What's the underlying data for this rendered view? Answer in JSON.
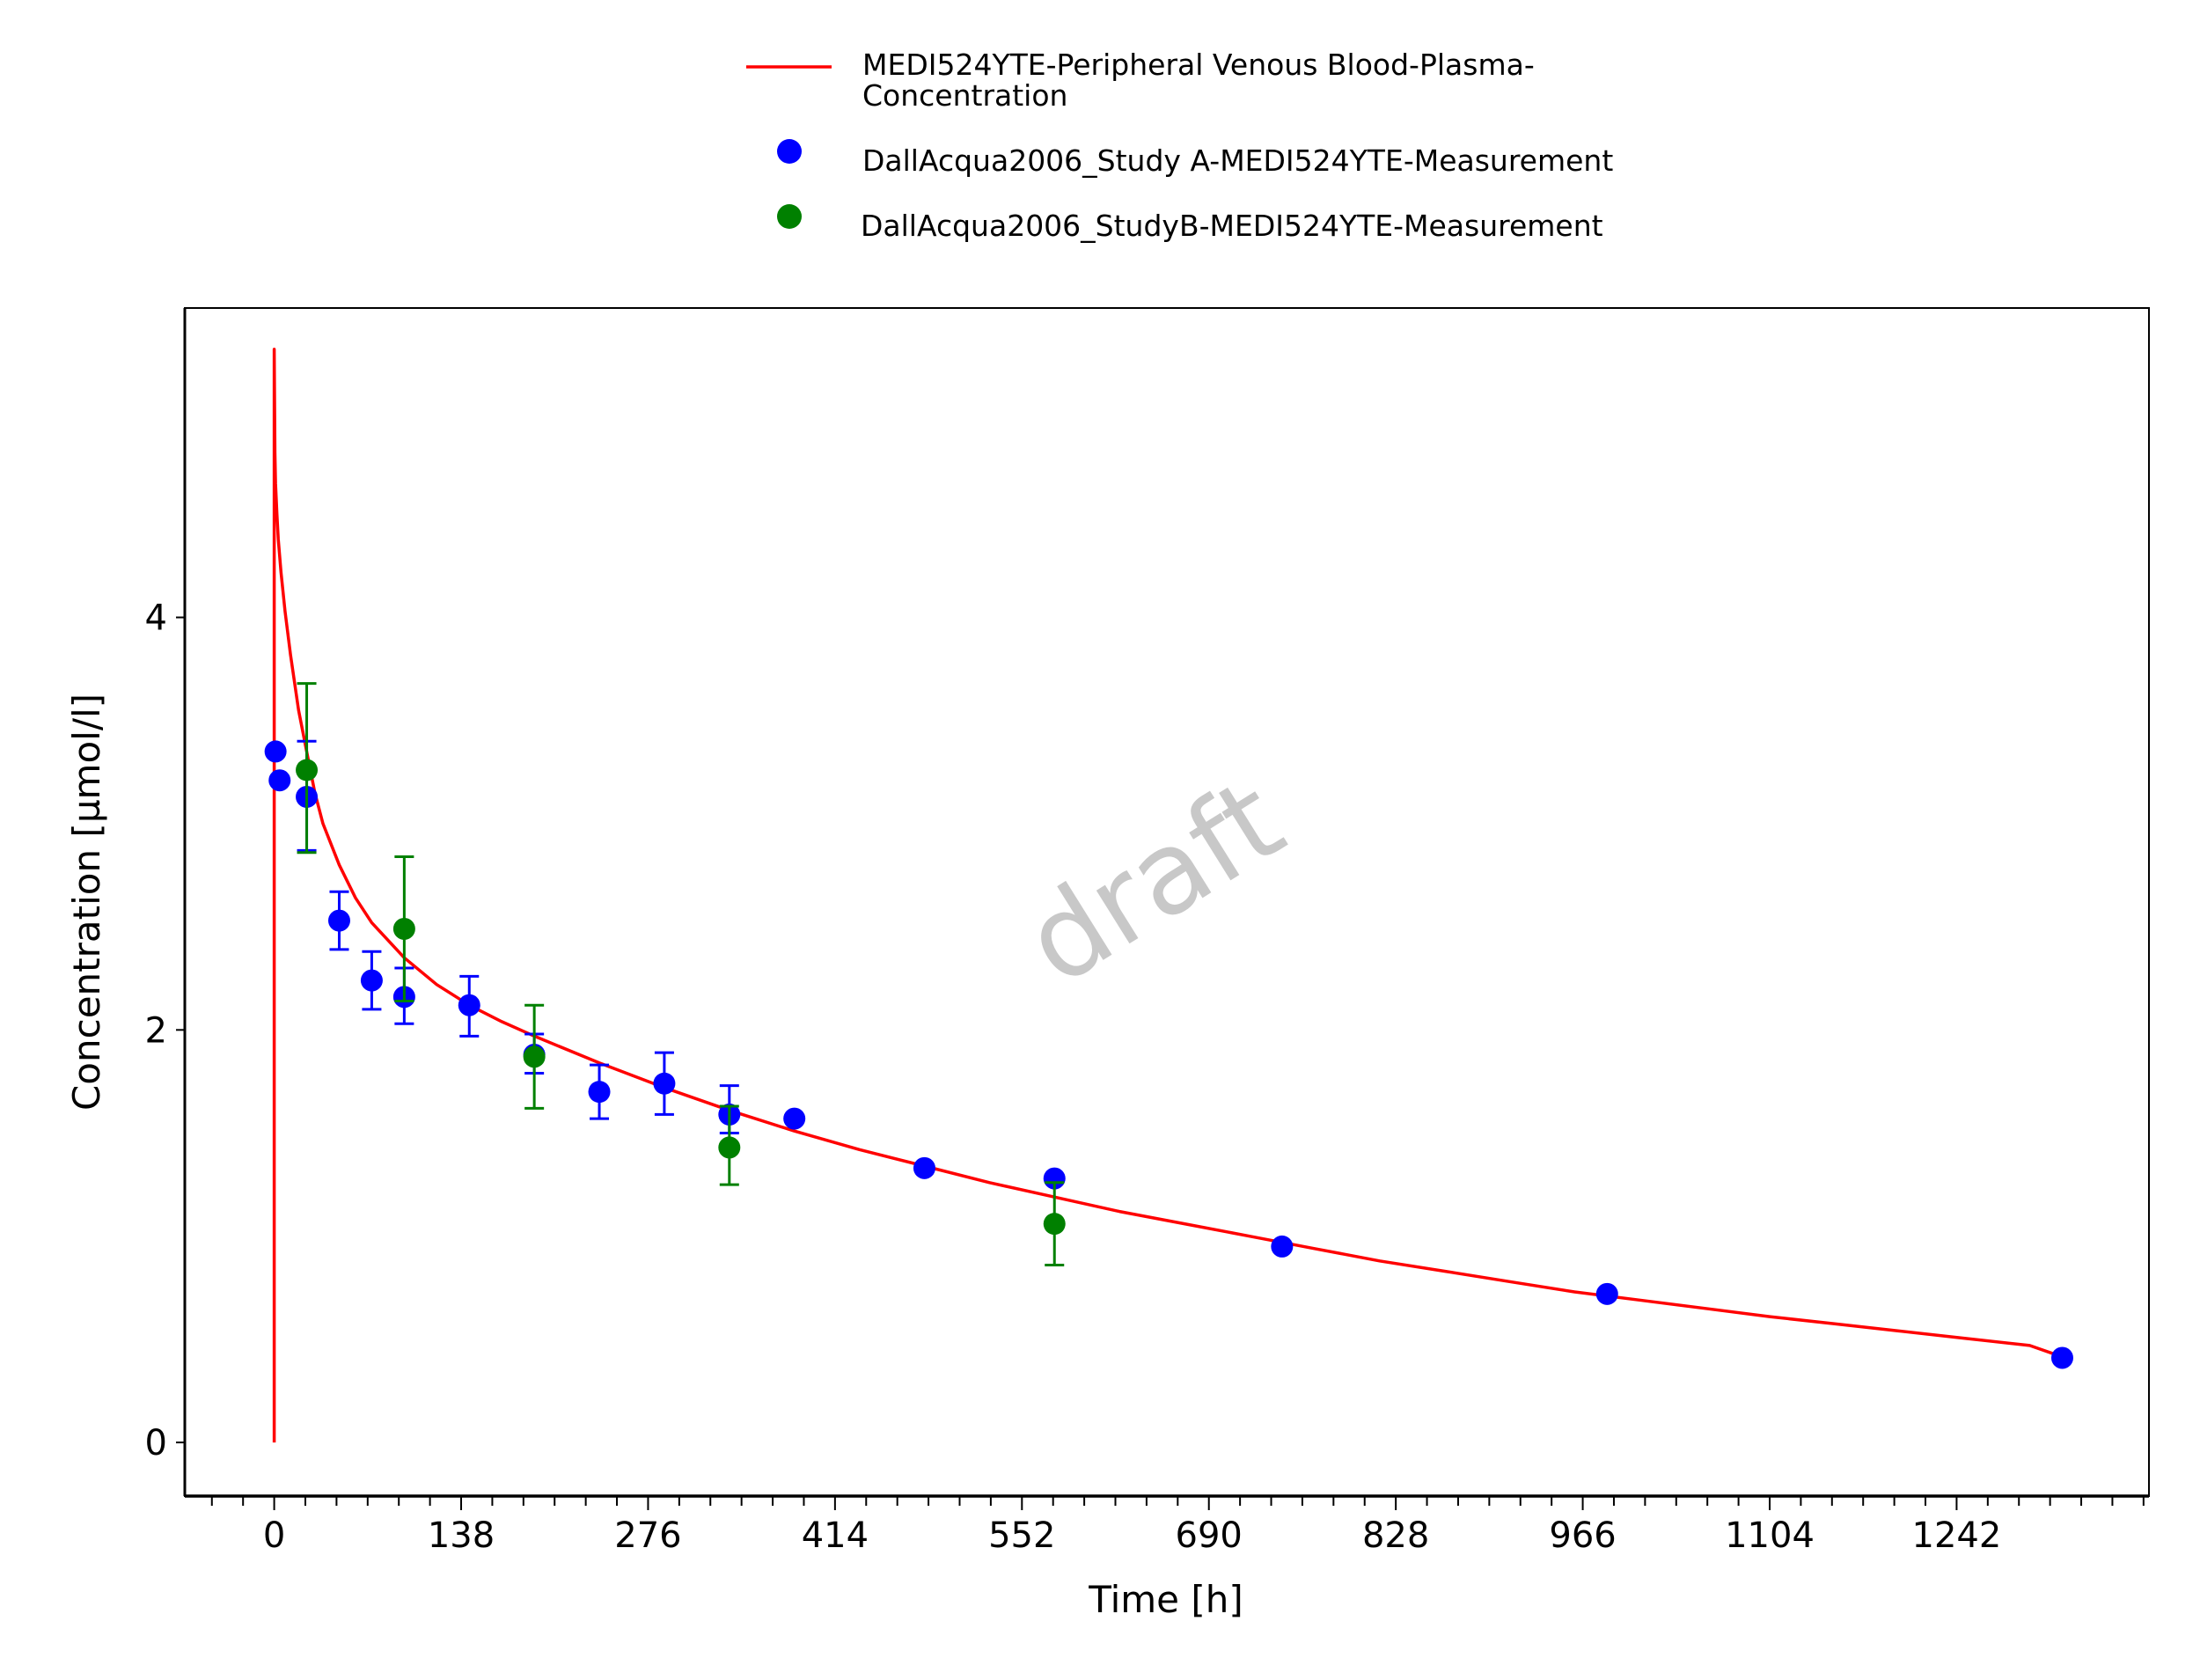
{
  "chart_data": {
    "type": "scatter",
    "title": "",
    "xlabel": "Time [h]",
    "ylabel": "Concentration [µmol/l]",
    "xlim": [
      -66,
      1384
    ],
    "ylim": [
      -0.26,
      5.5
    ],
    "x_ticks": [
      0,
      138,
      276,
      414,
      552,
      690,
      828,
      966,
      1104,
      1242
    ],
    "x_tick_labels": [
      "0",
      "138",
      "276",
      "414",
      "552",
      "690",
      "828",
      "966",
      "1104",
      "1242"
    ],
    "y_ticks": [
      0,
      2,
      4
    ],
    "y_tick_labels": [
      "0",
      "2",
      "4"
    ],
    "grid": false,
    "legend_position": "top-center",
    "watermark": "draft",
    "series": [
      {
        "name": "MEDI524YTE-Peripheral Venous Blood-Plasma-Concentration",
        "legend_lines": [
          "MEDI524YTE-Peripheral Venous Blood-Plasma-",
          "Concentration"
        ],
        "kind": "line",
        "color": "#ff0000",
        "x": [
          0,
          0,
          0.5,
          1,
          2,
          3,
          5,
          8,
          12,
          18,
          24,
          30,
          36,
          48,
          60,
          72,
          96,
          120,
          144,
          168,
          192,
          240,
          288,
          336,
          384,
          432,
          480,
          528,
          576,
          624,
          672,
          720,
          768,
          816,
          864,
          912,
          960,
          1008,
          1056,
          1104,
          1152,
          1200,
          1248,
          1296,
          1320
        ],
        "y": [
          0,
          5.3,
          4.8,
          4.65,
          4.5,
          4.38,
          4.22,
          4.03,
          3.82,
          3.55,
          3.35,
          3.15,
          3.0,
          2.8,
          2.64,
          2.52,
          2.35,
          2.22,
          2.12,
          2.04,
          1.97,
          1.84,
          1.72,
          1.61,
          1.51,
          1.42,
          1.34,
          1.26,
          1.19,
          1.12,
          1.06,
          1.0,
          0.94,
          0.88,
          0.83,
          0.78,
          0.73,
          0.69,
          0.65,
          0.61,
          0.575,
          0.54,
          0.505,
          0.47,
          0.415
        ]
      },
      {
        "name": "DallAcqua2006_Study A-MEDI524YTE-Measurement",
        "kind": "points",
        "color": "#0000ff",
        "x": [
          1,
          4,
          24,
          48,
          72,
          96,
          144,
          192,
          240,
          288,
          336,
          384,
          480,
          576,
          744,
          984,
          1320
        ],
        "y": [
          3.35,
          3.21,
          3.13,
          2.53,
          2.24,
          2.16,
          2.12,
          1.88,
          1.7,
          1.74,
          1.59,
          1.57,
          1.33,
          1.28,
          0.95,
          0.72,
          0.41
        ],
        "err_low": [
          null,
          null,
          2.87,
          2.39,
          2.1,
          2.03,
          1.97,
          1.79,
          1.57,
          1.59,
          1.5,
          null,
          null,
          null,
          null,
          null,
          null
        ],
        "err_high": [
          null,
          null,
          3.4,
          2.67,
          2.38,
          2.3,
          2.26,
          1.98,
          1.83,
          1.89,
          1.73,
          null,
          null,
          null,
          null,
          null,
          null
        ]
      },
      {
        "name": "DallAcqua2006_StudyB-MEDI524YTE-Measurement",
        "kind": "points",
        "color": "#008000",
        "x": [
          24,
          96,
          192,
          336,
          576
        ],
        "y": [
          3.26,
          2.49,
          1.87,
          1.43,
          1.06
        ],
        "err_low": [
          2.86,
          2.14,
          1.62,
          1.25,
          0.86
        ],
        "err_high": [
          3.68,
          2.84,
          2.12,
          1.63,
          1.26
        ]
      }
    ]
  }
}
